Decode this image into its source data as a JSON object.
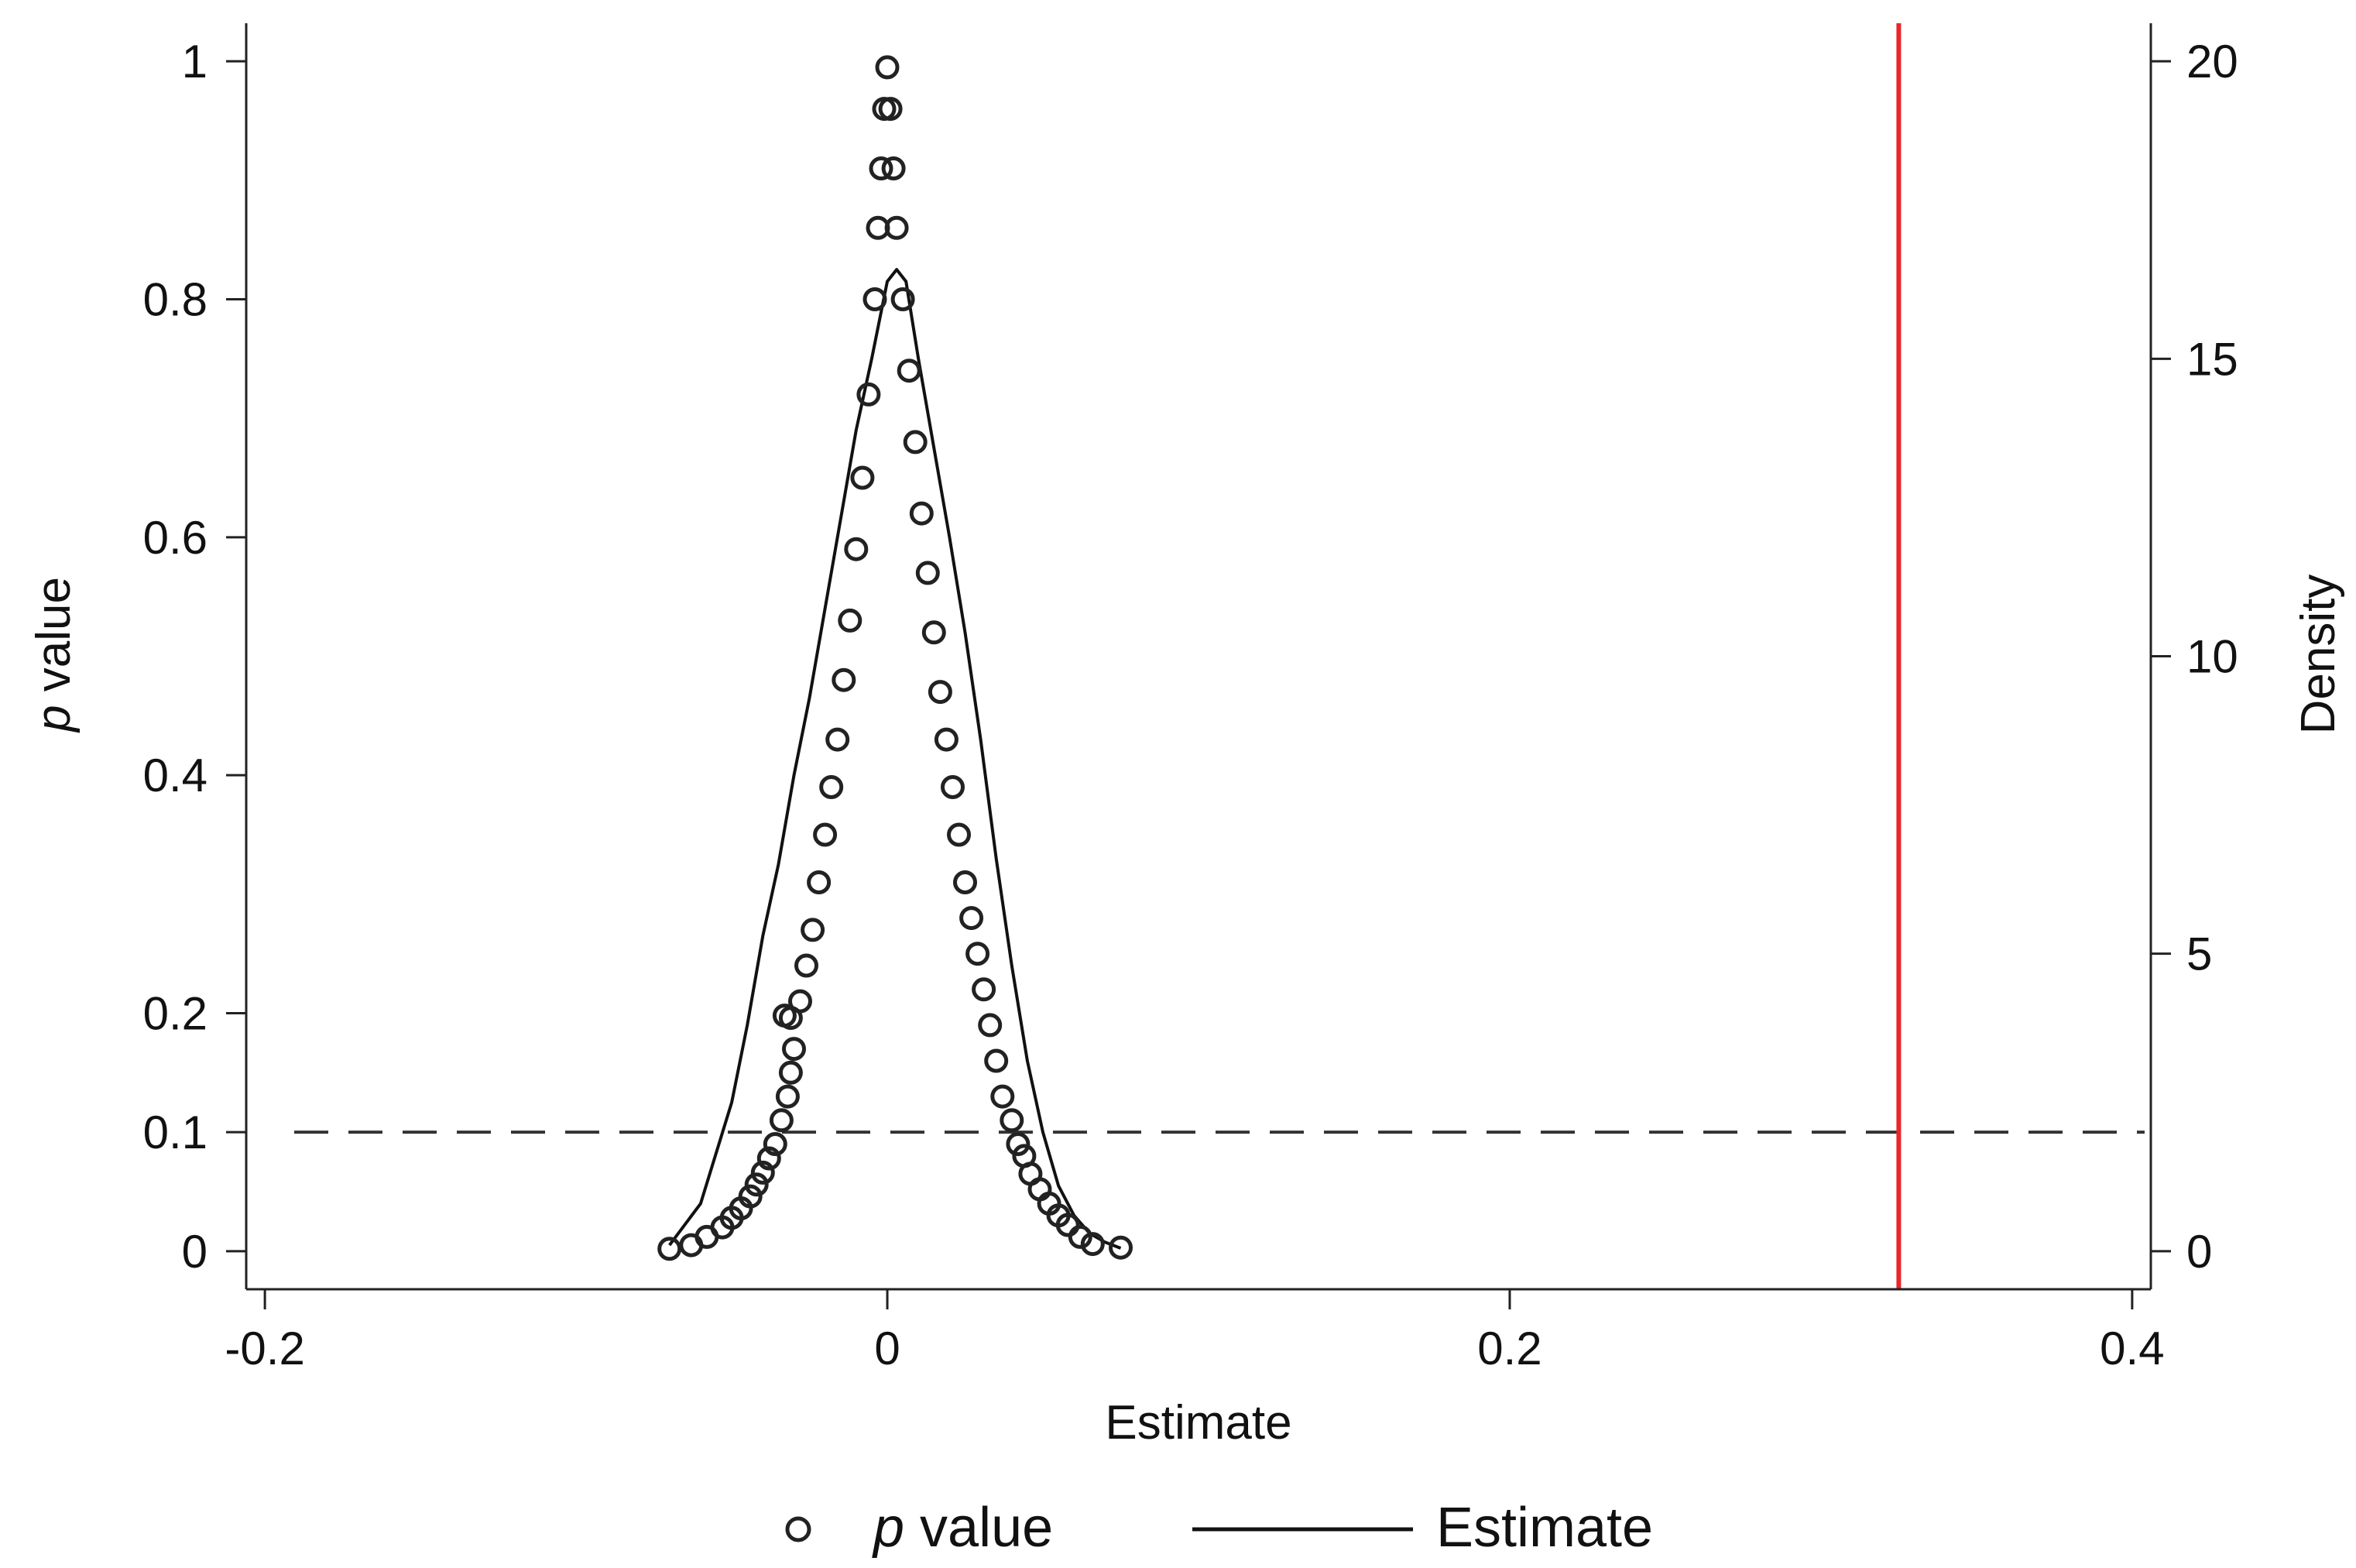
{
  "chart_data": {
    "type": "scatter",
    "xlabel": "Estimate",
    "ylabel_left_italic": "p",
    "ylabel_left_rest": " value",
    "ylabel_right": "Density",
    "xlim": [
      -0.206,
      0.406
    ],
    "ylim_left": [
      -0.032,
      1.032
    ],
    "ylim_right": [
      -0.64,
      20.64
    ],
    "xticks": [
      -0.2,
      0,
      0.2,
      0.4
    ],
    "xtick_labels": [
      "-0.2",
      "0",
      "0.2",
      "0.4"
    ],
    "yticks_left": [
      0,
      0.1,
      0.2,
      0.4,
      0.6,
      0.8,
      1
    ],
    "ytick_labels_left": [
      "0",
      "0.1",
      "0.2",
      "0.4",
      "0.6",
      "0.8",
      "1"
    ],
    "yticks_right": [
      0,
      5,
      10,
      15,
      20
    ],
    "ytick_labels_right": [
      "0",
      "5",
      "10",
      "15",
      "20"
    ],
    "grid": false,
    "reference_lines": {
      "horizontal_dashed_p": 0.1,
      "vertical_red_x": 0.325,
      "vertical_red_color": "#e8272a"
    },
    "series": [
      {
        "name": "p value",
        "kind": "scatter",
        "marker": "hollow-circle",
        "color": "#222222",
        "axis": "left",
        "points": [
          [
            -0.07,
            0.002
          ],
          [
            -0.063,
            0.005
          ],
          [
            -0.058,
            0.012
          ],
          [
            -0.053,
            0.02
          ],
          [
            -0.05,
            0.028
          ],
          [
            -0.047,
            0.036
          ],
          [
            -0.044,
            0.046
          ],
          [
            -0.042,
            0.056
          ],
          [
            -0.04,
            0.066
          ],
          [
            -0.038,
            0.078
          ],
          [
            -0.036,
            0.09
          ],
          [
            -0.034,
            0.11
          ],
          [
            -0.032,
            0.13
          ],
          [
            -0.031,
            0.15
          ],
          [
            -0.03,
            0.17
          ],
          [
            -0.031,
            0.196
          ],
          [
            -0.033,
            0.198
          ],
          [
            -0.028,
            0.21
          ],
          [
            -0.026,
            0.24
          ],
          [
            -0.024,
            0.27
          ],
          [
            -0.022,
            0.31
          ],
          [
            -0.02,
            0.35
          ],
          [
            -0.018,
            0.39
          ],
          [
            -0.016,
            0.43
          ],
          [
            -0.014,
            0.48
          ],
          [
            -0.012,
            0.53
          ],
          [
            -0.01,
            0.59
          ],
          [
            -0.008,
            0.65
          ],
          [
            -0.006,
            0.72
          ],
          [
            -0.004,
            0.8
          ],
          [
            -0.003,
            0.86
          ],
          [
            -0.002,
            0.91
          ],
          [
            -0.001,
            0.96
          ],
          [
            0.0,
            0.995
          ],
          [
            0.001,
            0.96
          ],
          [
            0.002,
            0.91
          ],
          [
            0.003,
            0.86
          ],
          [
            0.005,
            0.8
          ],
          [
            0.007,
            0.74
          ],
          [
            0.009,
            0.68
          ],
          [
            0.011,
            0.62
          ],
          [
            0.013,
            0.57
          ],
          [
            0.015,
            0.52
          ],
          [
            0.017,
            0.47
          ],
          [
            0.019,
            0.43
          ],
          [
            0.021,
            0.39
          ],
          [
            0.023,
            0.35
          ],
          [
            0.025,
            0.31
          ],
          [
            0.027,
            0.28
          ],
          [
            0.029,
            0.25
          ],
          [
            0.031,
            0.22
          ],
          [
            0.033,
            0.19
          ],
          [
            0.035,
            0.16
          ],
          [
            0.037,
            0.13
          ],
          [
            0.04,
            0.11
          ],
          [
            0.042,
            0.09
          ],
          [
            0.044,
            0.08
          ],
          [
            0.046,
            0.065
          ],
          [
            0.049,
            0.052
          ],
          [
            0.052,
            0.04
          ],
          [
            0.055,
            0.03
          ],
          [
            0.058,
            0.022
          ],
          [
            0.062,
            0.012
          ],
          [
            0.066,
            0.006
          ],
          [
            0.075,
            0.003
          ]
        ]
      },
      {
        "name": "Estimate",
        "kind": "line",
        "color": "#111111",
        "axis": "right",
        "points": [
          [
            -0.07,
            0.1
          ],
          [
            -0.06,
            0.8
          ],
          [
            -0.05,
            2.5
          ],
          [
            -0.045,
            3.8
          ],
          [
            -0.04,
            5.3
          ],
          [
            -0.035,
            6.5
          ],
          [
            -0.03,
            8.0
          ],
          [
            -0.025,
            9.3
          ],
          [
            -0.02,
            10.8
          ],
          [
            -0.015,
            12.3
          ],
          [
            -0.01,
            13.8
          ],
          [
            -0.005,
            15.0
          ],
          [
            0.0,
            16.3
          ],
          [
            0.003,
            16.5
          ],
          [
            0.006,
            16.3
          ],
          [
            0.01,
            15.0
          ],
          [
            0.015,
            13.5
          ],
          [
            0.02,
            12.0
          ],
          [
            0.025,
            10.4
          ],
          [
            0.03,
            8.6
          ],
          [
            0.035,
            6.6
          ],
          [
            0.04,
            4.8
          ],
          [
            0.045,
            3.2
          ],
          [
            0.05,
            2.0
          ],
          [
            0.055,
            1.1
          ],
          [
            0.06,
            0.6
          ],
          [
            0.065,
            0.3
          ],
          [
            0.07,
            0.15
          ],
          [
            0.075,
            0.05
          ]
        ]
      }
    ],
    "legend": {
      "placement": "bottom-center",
      "items": [
        {
          "italic": "p",
          "rest": " value",
          "marker": "hollow-circle"
        },
        {
          "label": "Estimate",
          "marker": "line"
        }
      ]
    }
  }
}
